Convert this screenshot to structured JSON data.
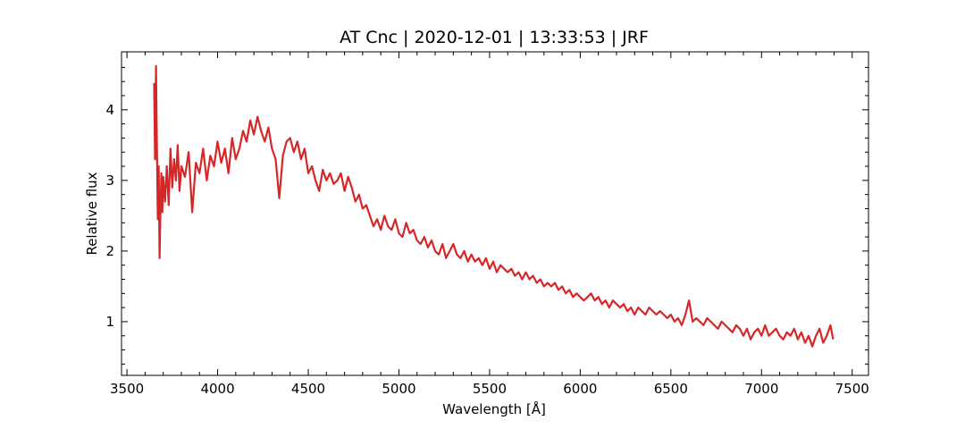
{
  "chart_data": {
    "type": "line",
    "title": "AT Cnc | 2020-12-01 | 13:33:53 | JRF",
    "xlabel": "Wavelength [Å]",
    "ylabel": "Relative flux",
    "xlim": [
      3470,
      7590
    ],
    "ylim": [
      0.24,
      4.82
    ],
    "x_ticks": [
      3500,
      4000,
      4500,
      5000,
      5500,
      6000,
      6500,
      7000,
      7500
    ],
    "y_ticks": [
      1,
      2,
      3,
      4
    ],
    "grid": false,
    "legend": "none",
    "series": [
      {
        "color": "#d62728",
        "x": [
          3650,
          3655,
          3660,
          3665,
          3670,
          3675,
          3680,
          3685,
          3690,
          3695,
          3700,
          3710,
          3720,
          3730,
          3740,
          3750,
          3760,
          3770,
          3780,
          3790,
          3800,
          3820,
          3840,
          3860,
          3880,
          3900,
          3920,
          3940,
          3960,
          3980,
          4000,
          4020,
          4040,
          4060,
          4080,
          4100,
          4120,
          4140,
          4160,
          4180,
          4200,
          4220,
          4240,
          4260,
          4280,
          4300,
          4320,
          4340,
          4360,
          4380,
          4400,
          4420,
          4440,
          4460,
          4480,
          4500,
          4520,
          4540,
          4560,
          4580,
          4600,
          4620,
          4640,
          4660,
          4680,
          4700,
          4720,
          4740,
          4760,
          4780,
          4800,
          4820,
          4840,
          4860,
          4880,
          4900,
          4920,
          4940,
          4960,
          4980,
          5000,
          5020,
          5040,
          5060,
          5080,
          5100,
          5120,
          5140,
          5160,
          5180,
          5200,
          5220,
          5240,
          5260,
          5280,
          5300,
          5320,
          5340,
          5360,
          5380,
          5400,
          5420,
          5440,
          5460,
          5480,
          5500,
          5520,
          5540,
          5560,
          5580,
          5600,
          5620,
          5640,
          5660,
          5680,
          5700,
          5720,
          5740,
          5760,
          5780,
          5800,
          5820,
          5840,
          5860,
          5880,
          5900,
          5920,
          5940,
          5960,
          5980,
          6000,
          6020,
          6040,
          6060,
          6080,
          6100,
          6120,
          6140,
          6160,
          6180,
          6200,
          6220,
          6240,
          6260,
          6280,
          6300,
          6320,
          6340,
          6360,
          6380,
          6400,
          6420,
          6440,
          6460,
          6480,
          6500,
          6520,
          6540,
          6560,
          6580,
          6600,
          6620,
          6640,
          6660,
          6680,
          6700,
          6720,
          6740,
          6760,
          6780,
          6800,
          6820,
          6840,
          6860,
          6880,
          6900,
          6920,
          6940,
          6960,
          6980,
          7000,
          7020,
          7040,
          7060,
          7080,
          7100,
          7120,
          7140,
          7160,
          7180,
          7200,
          7220,
          7240,
          7260,
          7280,
          7300,
          7320,
          7340,
          7360,
          7380,
          7395
        ],
        "y": [
          4.38,
          3.3,
          4.62,
          3.5,
          2.45,
          3.2,
          1.9,
          2.6,
          3.1,
          2.55,
          3.05,
          2.7,
          3.2,
          2.65,
          3.45,
          2.9,
          3.3,
          3.0,
          3.5,
          2.85,
          3.2,
          3.05,
          3.4,
          2.55,
          3.25,
          3.1,
          3.45,
          3.0,
          3.35,
          3.2,
          3.55,
          3.25,
          3.45,
          3.1,
          3.6,
          3.3,
          3.45,
          3.7,
          3.55,
          3.85,
          3.65,
          3.9,
          3.7,
          3.55,
          3.75,
          3.45,
          3.3,
          2.75,
          3.35,
          3.55,
          3.6,
          3.4,
          3.55,
          3.3,
          3.45,
          3.1,
          3.2,
          3.0,
          2.85,
          3.15,
          3.0,
          3.1,
          2.95,
          3.0,
          3.1,
          2.85,
          3.05,
          2.9,
          2.7,
          2.8,
          2.6,
          2.65,
          2.5,
          2.35,
          2.45,
          2.3,
          2.5,
          2.35,
          2.3,
          2.45,
          2.25,
          2.2,
          2.4,
          2.25,
          2.3,
          2.15,
          2.1,
          2.2,
          2.05,
          2.15,
          2.0,
          1.95,
          2.1,
          1.9,
          2.0,
          2.1,
          1.95,
          1.9,
          2.0,
          1.85,
          1.95,
          1.85,
          1.9,
          1.8,
          1.9,
          1.75,
          1.85,
          1.7,
          1.8,
          1.75,
          1.7,
          1.75,
          1.65,
          1.7,
          1.6,
          1.7,
          1.6,
          1.65,
          1.55,
          1.6,
          1.5,
          1.55,
          1.5,
          1.55,
          1.45,
          1.5,
          1.4,
          1.45,
          1.35,
          1.4,
          1.35,
          1.3,
          1.35,
          1.4,
          1.3,
          1.35,
          1.25,
          1.3,
          1.2,
          1.3,
          1.25,
          1.2,
          1.25,
          1.15,
          1.2,
          1.1,
          1.2,
          1.15,
          1.1,
          1.2,
          1.15,
          1.1,
          1.15,
          1.1,
          1.05,
          1.1,
          1.0,
          1.05,
          0.95,
          1.1,
          1.3,
          1.0,
          1.05,
          1.0,
          0.95,
          1.05,
          1.0,
          0.95,
          0.9,
          1.0,
          0.95,
          0.9,
          0.85,
          0.95,
          0.9,
          0.8,
          0.9,
          0.75,
          0.85,
          0.9,
          0.8,
          0.95,
          0.8,
          0.85,
          0.9,
          0.8,
          0.75,
          0.85,
          0.8,
          0.9,
          0.75,
          0.85,
          0.7,
          0.8,
          0.65,
          0.8,
          0.9,
          0.7,
          0.8,
          0.95,
          0.75
        ]
      }
    ]
  }
}
